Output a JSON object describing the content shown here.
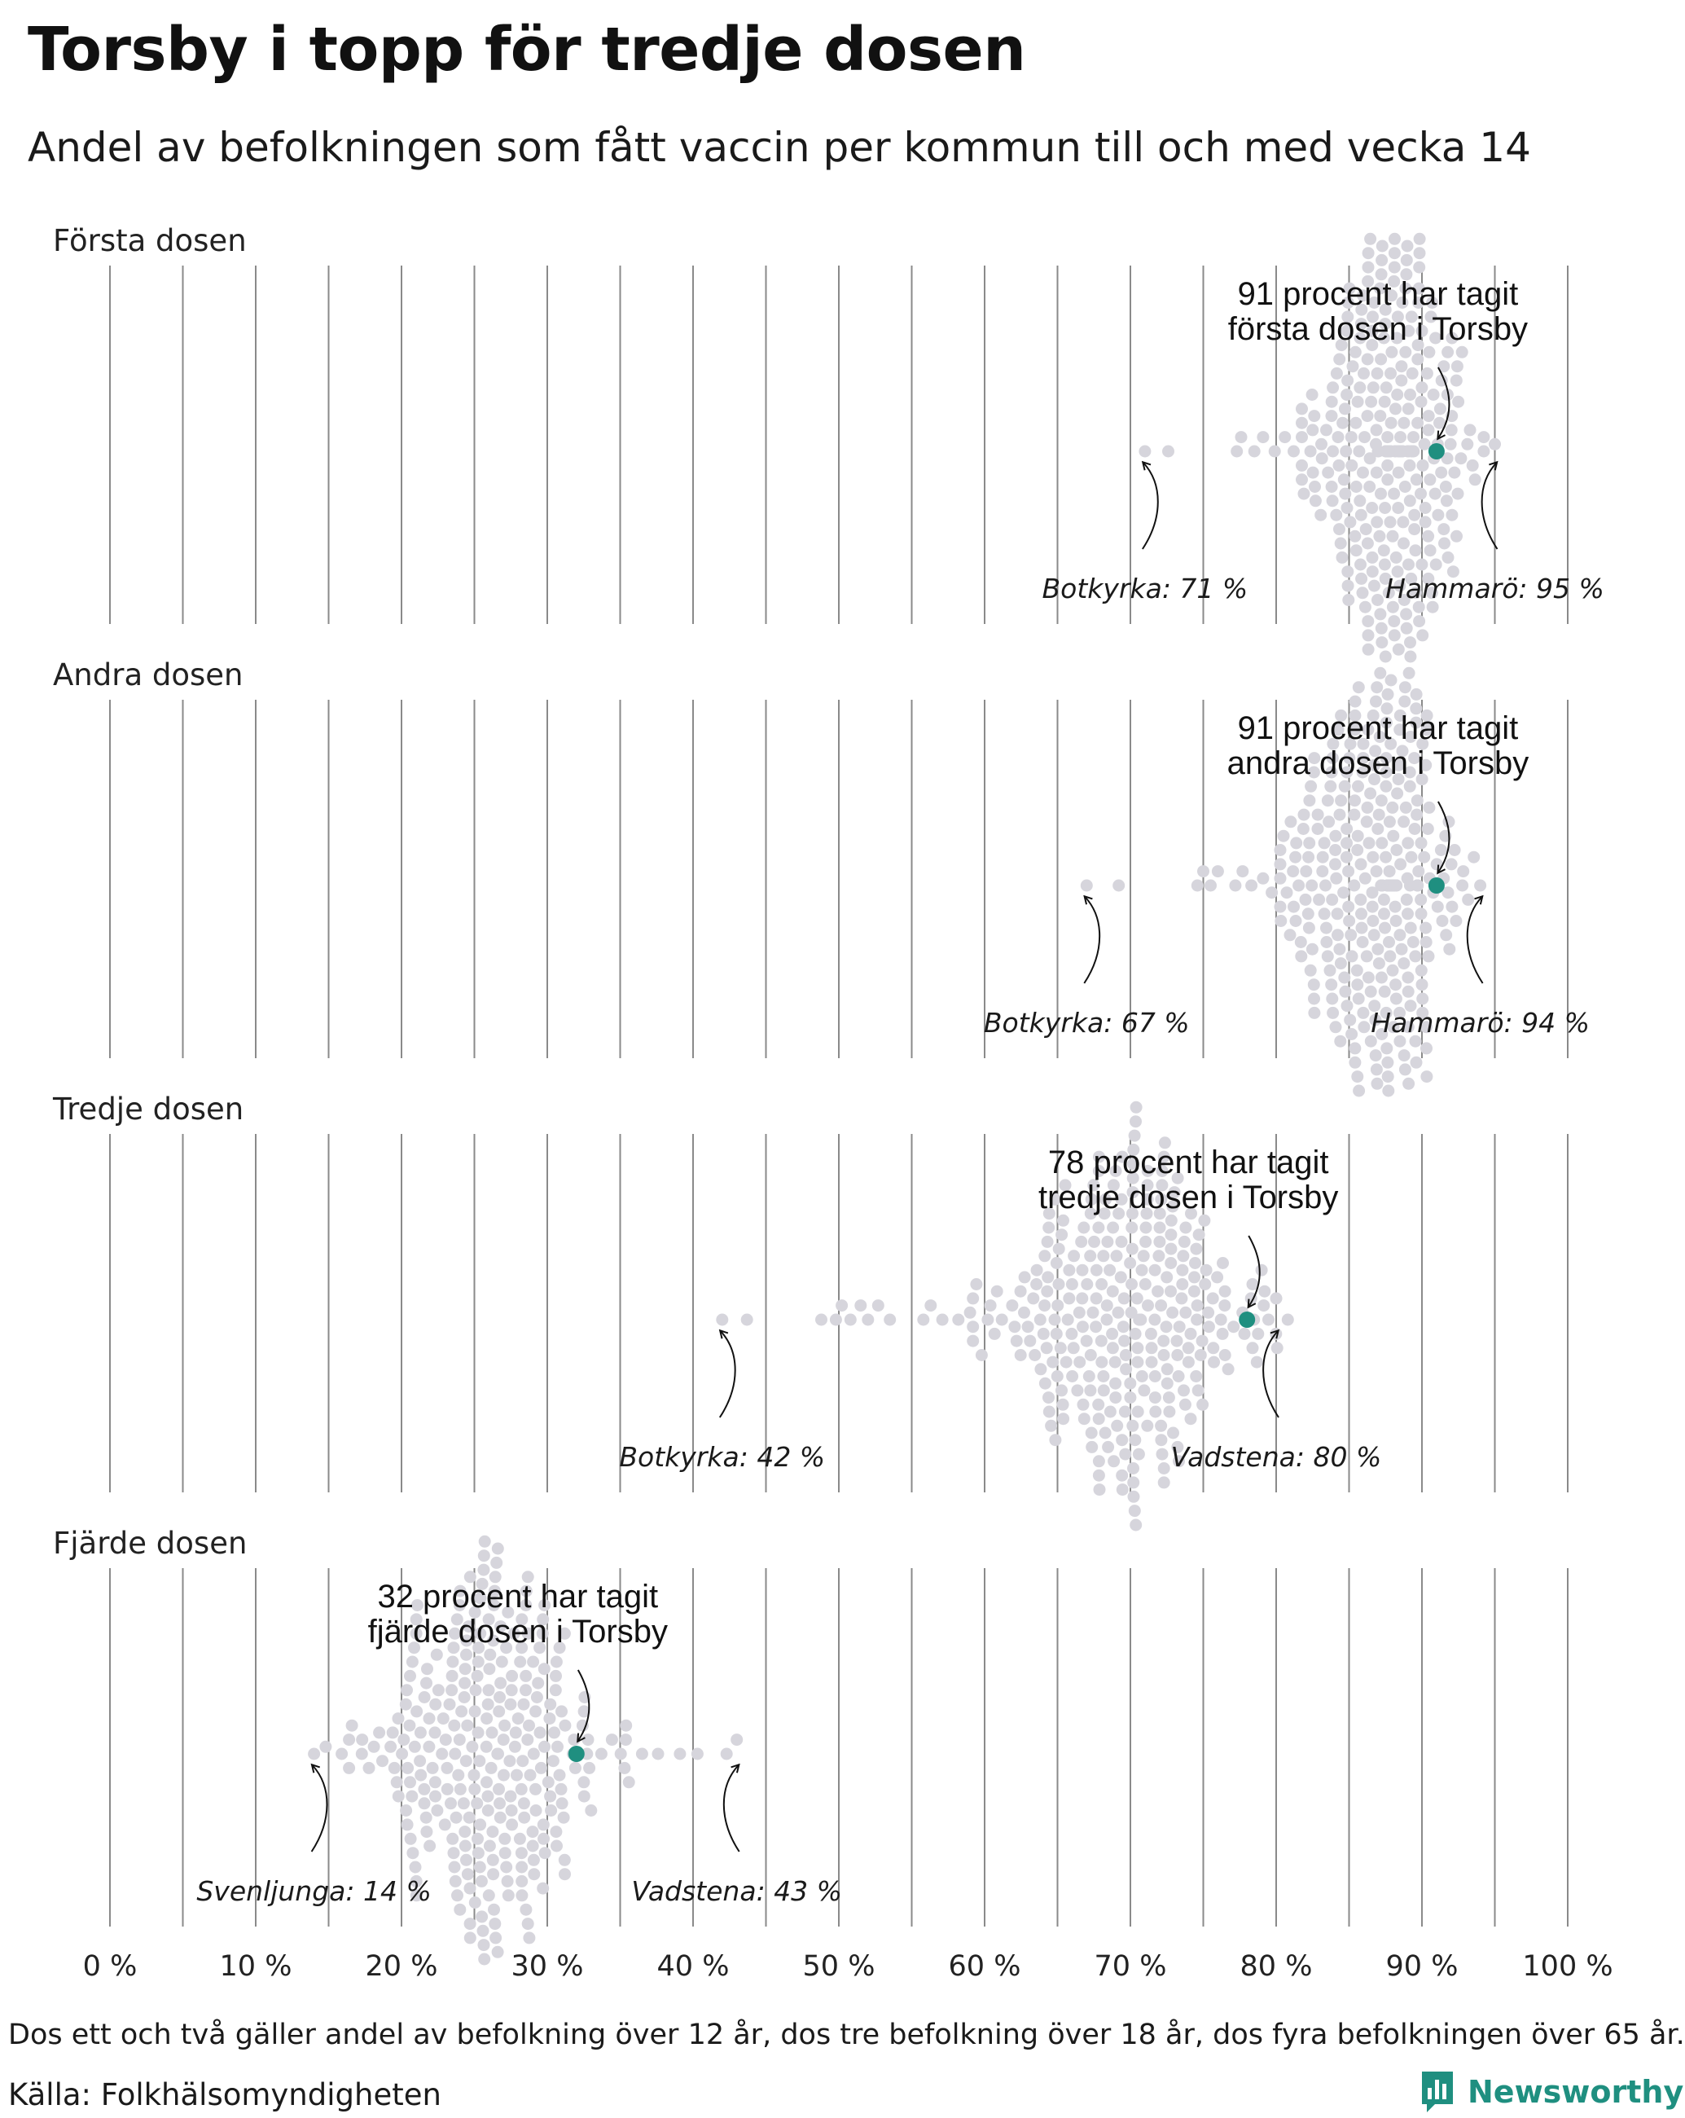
{
  "title": "Torsby i topp för tredje dosen",
  "subtitle": "Andel av befolkningen som fått vaccin per kommun till och med vecka 14",
  "footnote": "Dos ett och två gäller andel av befolkning över 12 år, dos tre befolkning över 18 år, dos fyra befolkningen över 65 år.",
  "source": "Källa: Folkhälsomyndigheten",
  "brand": "Newsworthy",
  "colors": {
    "dots": "#d6d5dc",
    "highlight": "#1f8f80",
    "gridlines": "#8a8a8a",
    "brand": "#1f8f80"
  },
  "chart_data": {
    "type": "beeswarm",
    "xlim": [
      0,
      100
    ],
    "ticks": [
      {
        "value": 0,
        "label": "0 %"
      },
      {
        "value": 10,
        "label": "10 %"
      },
      {
        "value": 20,
        "label": "20 %"
      },
      {
        "value": 30,
        "label": "30 %"
      },
      {
        "value": 40,
        "label": "40 %"
      },
      {
        "value": 50,
        "label": "50 %"
      },
      {
        "value": 60,
        "label": "60 %"
      },
      {
        "value": 70,
        "label": "70 %"
      },
      {
        "value": 80,
        "label": "80 %"
      },
      {
        "value": 90,
        "label": "90 %"
      },
      {
        "value": 100,
        "label": "100 %"
      }
    ],
    "grid": true,
    "facets": [
      {
        "label": "Första dosen",
        "distribution": {
          "center": 88,
          "spread": 2.6,
          "count": 290
        },
        "highlight": {
          "name": "Torsby",
          "value": 91,
          "label_lines": [
            "91 procent har tagit",
            "första dosen i Torsby"
          ]
        },
        "min": {
          "name": "Botkyrka",
          "value": 71,
          "label": "Botkyrka: 71 %"
        },
        "max": {
          "name": "Hammarö",
          "value": 95,
          "label": "Hammarö: 95 %"
        },
        "tail_values": [
          72.6,
          77.3,
          77.6,
          78.5,
          79.1,
          79.9,
          80.6,
          81.2,
          81.9,
          82.5,
          83.1,
          83.8,
          84.3
        ]
      },
      {
        "label": "Andra dosen",
        "distribution": {
          "center": 87,
          "spread": 2.8,
          "count": 290
        },
        "highlight": {
          "name": "Torsby",
          "value": 91,
          "label_lines": [
            "91 procent har tagit",
            "andra dosen i Torsby"
          ]
        },
        "min": {
          "name": "Botkyrka",
          "value": 67,
          "label": "Botkyrka: 67 %"
        },
        "max": {
          "name": "Hammarö",
          "value": 94,
          "label": "Hammarö: 94 %"
        },
        "tail_values": [
          69.2,
          74.6,
          75.0,
          75.5,
          76.0,
          77.2,
          77.7,
          78.3,
          79.1,
          79.7,
          80.5,
          81.2,
          81.9,
          82.6,
          83.3
        ]
      },
      {
        "label": "Tredje dosen",
        "distribution": {
          "center": 70,
          "spread": 4.5,
          "count": 290
        },
        "highlight": {
          "name": "Torsby",
          "value": 78,
          "label_lines": [
            "78 procent har tagit",
            "tredje dosen i Torsby"
          ]
        },
        "min": {
          "name": "Botkyrka",
          "value": 42,
          "label": "Botkyrka: 42 %"
        },
        "max": {
          "name": "Vadstena",
          "value": 80,
          "label": "Vadstena: 80 %"
        },
        "tail_values": [
          43.7,
          48.8,
          49.8,
          50.2,
          50.8,
          51.5,
          52.0,
          52.7,
          53.5,
          55.8,
          56.3,
          57.1,
          58.2,
          59.0,
          59.8
        ]
      },
      {
        "label": "Fjärde dosen",
        "distribution": {
          "center": 26,
          "spread": 4.0,
          "count": 280
        },
        "highlight": {
          "name": "Torsby",
          "value": 32,
          "label_lines": [
            "32 procent har tagit",
            "fjärde dosen i Torsby"
          ]
        },
        "min": {
          "name": "Svenljunga",
          "value": 14,
          "label": "Svenljunga: 14 %"
        },
        "max": {
          "name": "Vadstena",
          "value": 43,
          "label": "Vadstena: 43 %"
        },
        "tail_values": [
          14.8,
          15.9,
          16.6,
          17.3,
          35.4,
          36.5,
          37.6,
          39.1,
          40.3,
          42.3
        ]
      }
    ]
  }
}
